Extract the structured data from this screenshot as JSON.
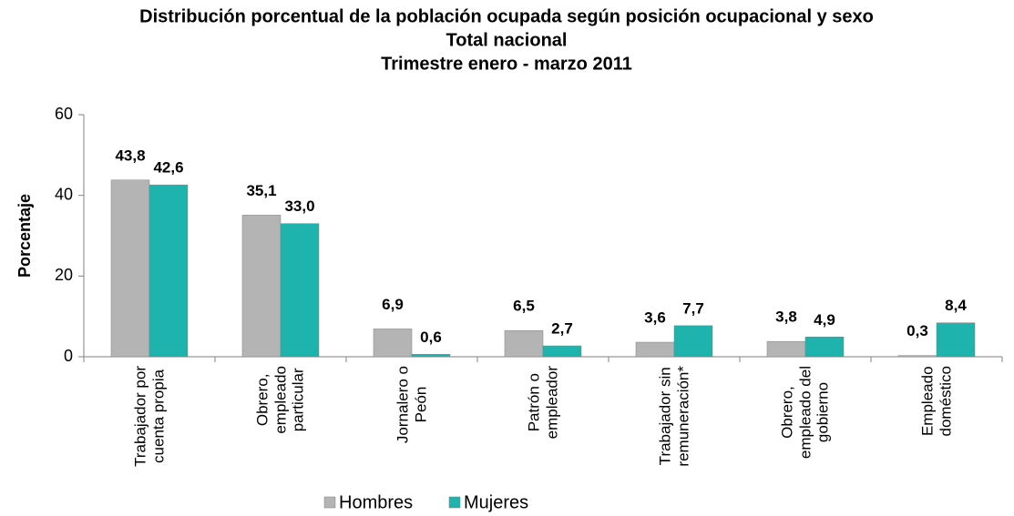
{
  "chart_data": {
    "type": "bar",
    "title": "Distribución porcentual de la población ocupada según posición ocupacional y sexo",
    "subtitle": [
      "Total nacional",
      "Trimestre enero - marzo 2011"
    ],
    "ylabel": "Porcentaje",
    "categories": [
      "Trabajador por\ncuenta propia",
      "Obrero,\nempleado\nparticular",
      "Jornalero o\nPeón",
      "Patrón o\nempleador",
      "Trabajador sin\nremuneración*",
      "Obrero,\nempleado del\ngobierno",
      "Empleado\ndoméstico"
    ],
    "series": [
      {
        "name": "Hombres",
        "color": "#b4b4b4",
        "values": [
          43.8,
          35.1,
          6.9,
          6.5,
          3.6,
          3.8,
          0.3
        ],
        "value_labels": [
          "43,8",
          "35,1",
          "6,9",
          "6,5",
          "3,6",
          "3,8",
          "0,3"
        ]
      },
      {
        "name": "Mujeres",
        "color": "#1eb3ad",
        "values": [
          42.6,
          33.0,
          0.6,
          2.7,
          7.7,
          4.9,
          8.4
        ],
        "value_labels": [
          "42,6",
          "33,0",
          "0,6",
          "2,7",
          "7,7",
          "4,9",
          "8,4"
        ]
      }
    ],
    "ylim": [
      0,
      60
    ],
    "yticks": [
      0,
      20,
      40,
      60
    ],
    "grid": false,
    "legend": "bottom"
  }
}
